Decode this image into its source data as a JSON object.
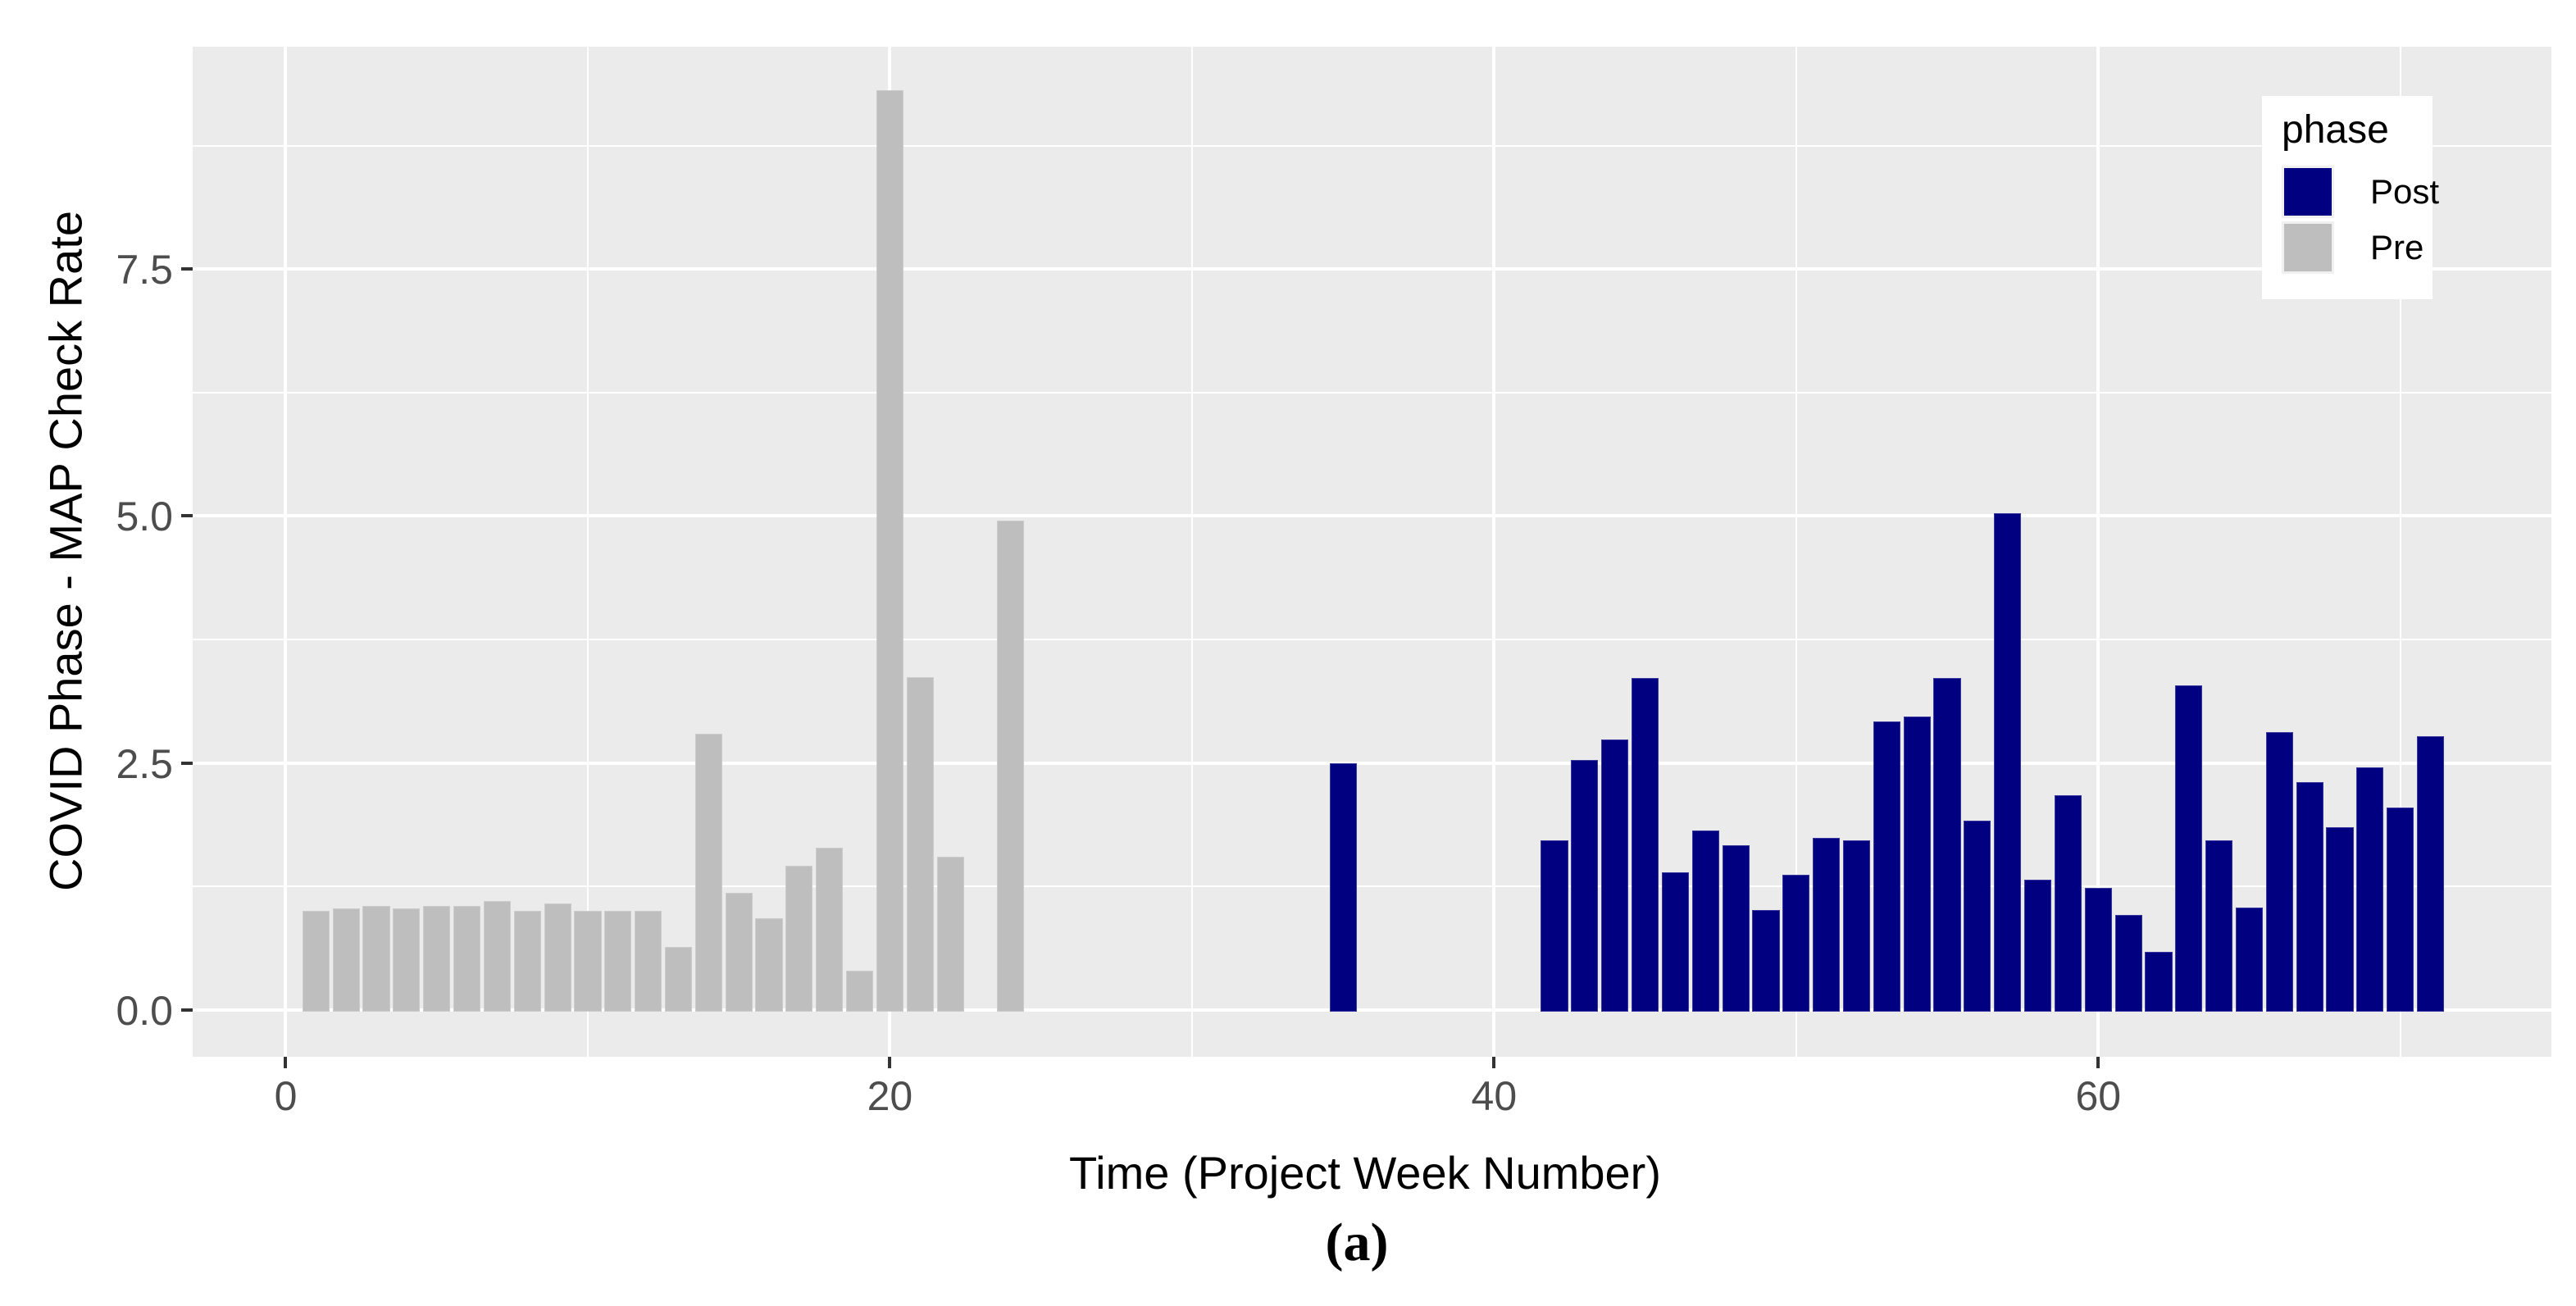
{
  "figure": {
    "caption": "(a)",
    "background": "#FFFFFF"
  },
  "panel": {
    "bg": "#EBEBEB",
    "grid_color": "#FFFFFF"
  },
  "axis": {
    "tick_color": "#333333",
    "tick_label_color": "#4D4D4D",
    "title_color": "#000000"
  },
  "chart_data": {
    "type": "bar",
    "title": "",
    "xlabel": "Time (Project Week Number)",
    "ylabel": "COVID Phase - MAP Check Rate",
    "bar_width": 0.9,
    "grid": true,
    "xlim": [
      -3.08,
      75.0
    ],
    "ylim": [
      -0.473,
      9.75
    ],
    "x_ticks": [
      0,
      20,
      40,
      60
    ],
    "x_tick_labels": [
      "0",
      "20",
      "40",
      "60"
    ],
    "x_minor": [
      10,
      30,
      50,
      70
    ],
    "y_ticks": [
      0,
      2.5,
      5,
      7.5
    ],
    "y_tick_labels": [
      "0.0",
      "2.5",
      "5.0",
      "7.5"
    ],
    "y_minor": [
      1.25,
      3.75,
      6.25,
      8.75
    ],
    "legend": {
      "title": "phase",
      "position": "inside-top-right",
      "entries": [
        {
          "label": "Post",
          "color": "#000080"
        },
        {
          "label": "Pre",
          "color": "#BEBEBE"
        }
      ]
    },
    "series": [
      {
        "name": "Pre",
        "color": "#BEBEBE",
        "points": [
          [
            1,
            1.0
          ],
          [
            2,
            1.03
          ],
          [
            3,
            1.05
          ],
          [
            4,
            1.03
          ],
          [
            5,
            1.05
          ],
          [
            6,
            1.05
          ],
          [
            7,
            1.1
          ],
          [
            8,
            1.0
          ],
          [
            9,
            1.08
          ],
          [
            10,
            1.0
          ],
          [
            11,
            1.0
          ],
          [
            12,
            1.0
          ],
          [
            13,
            0.64
          ],
          [
            14,
            2.8
          ],
          [
            15,
            1.19
          ],
          [
            16,
            0.93
          ],
          [
            17,
            1.46
          ],
          [
            18,
            1.64
          ],
          [
            19,
            0.4
          ],
          [
            20,
            9.31
          ],
          [
            21,
            3.37
          ],
          [
            22,
            1.55
          ],
          [
            24,
            4.95
          ]
        ]
      },
      {
        "name": "Post",
        "color": "#000080",
        "points": [
          [
            35,
            2.5
          ],
          [
            42,
            1.72
          ],
          [
            43,
            2.53
          ],
          [
            44,
            2.74
          ],
          [
            45,
            3.36
          ],
          [
            46,
            1.39
          ],
          [
            47,
            1.82
          ],
          [
            48,
            1.67
          ],
          [
            49,
            1.01
          ],
          [
            50,
            1.37
          ],
          [
            51,
            1.74
          ],
          [
            52,
            1.72
          ],
          [
            53,
            2.92
          ],
          [
            54,
            2.97
          ],
          [
            55,
            3.36
          ],
          [
            56,
            1.92
          ],
          [
            57,
            5.03
          ],
          [
            58,
            1.32
          ],
          [
            59,
            2.17
          ],
          [
            60,
            1.24
          ],
          [
            61,
            0.96
          ],
          [
            62,
            0.59
          ],
          [
            63,
            3.29
          ],
          [
            64,
            1.72
          ],
          [
            65,
            1.04
          ],
          [
            66,
            2.81
          ],
          [
            67,
            2.31
          ],
          [
            68,
            1.85
          ],
          [
            69,
            2.46
          ],
          [
            70,
            2.05
          ],
          [
            71,
            2.77
          ]
        ]
      }
    ]
  }
}
